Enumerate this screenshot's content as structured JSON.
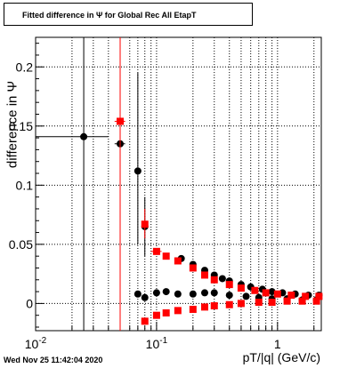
{
  "title": "Fitted difference in  Ψ  for Global Rec All EtapT",
  "timestamp": "Wed Nov 25 11:42:04 2020",
  "chart_data": {
    "type": "scatter",
    "title": "Fitted difference in  Ψ  for Global Rec All EtapT",
    "xlabel": "pT/|q| (GeV/c)",
    "ylabel": "difference in  Ψ",
    "xscale": "log",
    "xlim": [
      0.01,
      2.3
    ],
    "ylim": [
      -0.023,
      0.225
    ],
    "grid": true,
    "x_ticks": [
      {
        "value": 0.01,
        "label": "10^-2"
      },
      {
        "value": 0.1,
        "label": "10^-1"
      },
      {
        "value": 1,
        "label": "1"
      }
    ],
    "y_ticks": [
      {
        "value": 0,
        "label": "0"
      },
      {
        "value": 0.05,
        "label": "0.05"
      },
      {
        "value": 0.1,
        "label": "0.1"
      },
      {
        "value": 0.15,
        "label": "0.15"
      },
      {
        "value": 0.2,
        "label": "0.2"
      }
    ],
    "series": [
      {
        "color": "#000000",
        "marker": "circle",
        "points": [
          {
            "x": 0.025,
            "y": 0.141,
            "xlo": 0.01,
            "xhi": 0.04,
            "ylo": -0.023,
            "yhi": 0.225
          },
          {
            "x": 0.05,
            "y": 0.135,
            "xlo": 0.045,
            "xhi": 0.055
          },
          {
            "x": 0.07,
            "y": 0.112,
            "ylo": 0.05,
            "yhi": 0.195
          },
          {
            "x": 0.08,
            "y": 0.065,
            "ylo": 0.04,
            "yhi": 0.09
          },
          {
            "x": 0.07,
            "y": 0.008
          },
          {
            "x": 0.08,
            "y": 0.005
          },
          {
            "x": 0.1,
            "y": 0.009
          },
          {
            "x": 0.12,
            "y": 0.01
          },
          {
            "x": 0.15,
            "y": 0.008
          },
          {
            "x": 0.2,
            "y": 0.008
          },
          {
            "x": 0.25,
            "y": 0.009
          },
          {
            "x": 0.3,
            "y": 0.009
          },
          {
            "x": 0.4,
            "y": 0.007
          },
          {
            "x": 0.55,
            "y": 0.006
          },
          {
            "x": 0.7,
            "y": 0.005
          },
          {
            "x": 0.9,
            "y": 0.004
          },
          {
            "x": 1.2,
            "y": 0.004
          },
          {
            "x": 1.6,
            "y": 0.003
          },
          {
            "x": 2.1,
            "y": 0.003
          },
          {
            "x": 0.16,
            "y": 0.038
          },
          {
            "x": 0.2,
            "y": 0.033
          },
          {
            "x": 0.25,
            "y": 0.028
          },
          {
            "x": 0.3,
            "y": 0.024
          },
          {
            "x": 0.35,
            "y": 0.021
          },
          {
            "x": 0.4,
            "y": 0.019
          },
          {
            "x": 0.5,
            "y": 0.016
          },
          {
            "x": 0.6,
            "y": 0.014
          },
          {
            "x": 0.75,
            "y": 0.012
          },
          {
            "x": 0.9,
            "y": 0.01
          },
          {
            "x": 1.1,
            "y": 0.009
          },
          {
            "x": 1.4,
            "y": 0.008
          },
          {
            "x": 1.8,
            "y": 0.007
          },
          {
            "x": 2.2,
            "y": 0.007
          }
        ]
      },
      {
        "color": "#ff0000",
        "marker": "square",
        "points": [
          {
            "x": 0.05,
            "y": 0.154,
            "xlo": 0.045,
            "xhi": 0.055,
            "ylo": -0.023,
            "yhi": 0.225
          },
          {
            "x": 0.08,
            "y": 0.067,
            "ylo": 0.055,
            "yhi": 0.08
          },
          {
            "x": 0.1,
            "y": 0.044,
            "xlo": 0.09,
            "xhi": 0.11
          },
          {
            "x": 0.12,
            "y": 0.04
          },
          {
            "x": 0.15,
            "y": 0.036
          },
          {
            "x": 0.2,
            "y": 0.03
          },
          {
            "x": 0.25,
            "y": 0.024
          },
          {
            "x": 0.3,
            "y": 0.02
          },
          {
            "x": 0.4,
            "y": 0.016
          },
          {
            "x": 0.5,
            "y": 0.013
          },
          {
            "x": 0.65,
            "y": 0.011
          },
          {
            "x": 0.8,
            "y": 0.009
          },
          {
            "x": 1.0,
            "y": 0.008
          },
          {
            "x": 1.3,
            "y": 0.007
          },
          {
            "x": 1.7,
            "y": 0.006
          },
          {
            "x": 2.2,
            "y": 0.006
          },
          {
            "x": 0.08,
            "y": -0.015
          },
          {
            "x": 0.1,
            "y": -0.01
          },
          {
            "x": 0.12,
            "y": -0.008
          },
          {
            "x": 0.15,
            "y": -0.006
          },
          {
            "x": 0.2,
            "y": -0.005
          },
          {
            "x": 0.25,
            "y": -0.003
          },
          {
            "x": 0.3,
            "y": -0.002
          },
          {
            "x": 0.4,
            "y": -0.001
          },
          {
            "x": 0.5,
            "y": 0.0
          },
          {
            "x": 0.7,
            "y": 0.001
          },
          {
            "x": 0.9,
            "y": 0.001
          },
          {
            "x": 1.2,
            "y": 0.002
          },
          {
            "x": 1.6,
            "y": 0.002
          },
          {
            "x": 2.1,
            "y": 0.002
          }
        ]
      }
    ]
  }
}
